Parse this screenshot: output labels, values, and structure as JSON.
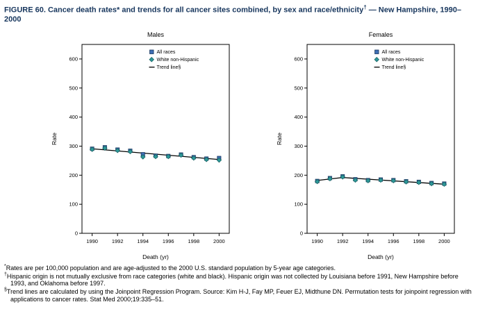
{
  "figure": {
    "title_pre": "FIGURE 60. Cancer death rates* and trends for all cancer sites combined, by sex and race/ethnicity",
    "title_sup": "†",
    "title_post": " — New Hampshire, 1990–2000"
  },
  "footnotes": [
    {
      "marker": "*",
      "text": "Rates are per 100,000 population and are age-adjusted to the 2000 U.S. standard population by 5-year age categories."
    },
    {
      "marker": "†",
      "text": "Hispanic origin is not mutually exclusive from race categories (white and black). Hispanic origin was not collected by Louisiana before 1991, New Hampshire before 1993, and Oklahoma before 1997."
    },
    {
      "marker": "§",
      "text": "Trend lines are calculated by using the Joinpoint Regression Program. Source: Kim H-J, Fay MP, Feuer EJ, Midthune DN. Permutation tests for joinpoint regression with applications to cancer rates. Stat Med 2000;19:335–51."
    }
  ],
  "colors": {
    "title_navy": "#17365d",
    "all_races_fill": "#3f6fb5",
    "all_races_stroke": "#17365d",
    "white_nh_fill": "#2e9999",
    "white_nh_stroke": "#1a6666",
    "trend": "#000000"
  },
  "chart_data": [
    {
      "type": "line",
      "title": "Males",
      "xlabel": "Death (yr)",
      "ylabel": "Rate",
      "ylim": [
        0,
        650
      ],
      "yticks": [
        0,
        100,
        200,
        300,
        400,
        500,
        600
      ],
      "x": [
        1990,
        1991,
        1992,
        1993,
        1994,
        1995,
        1996,
        1997,
        1998,
        1999,
        2000
      ],
      "xticks": [
        1990,
        1992,
        1994,
        1996,
        1998,
        2000
      ],
      "series": [
        {
          "name": "All races",
          "marker": "square",
          "fill": "#3f6fb5",
          "stroke": "#17365d",
          "values": [
            291,
            296,
            288,
            284,
            272,
            267,
            266,
            271,
            262,
            257,
            259
          ]
        },
        {
          "name": "White non-Hispanic",
          "marker": "diamond",
          "fill": "#2e9999",
          "stroke": "#1a6666",
          "values": [
            289,
            293,
            285,
            281,
            263,
            264,
            264,
            269,
            259,
            254,
            252
          ]
        }
      ],
      "trend": [
        [
          1990,
          291
        ],
        [
          2000,
          254
        ]
      ],
      "trend_color": "#000000",
      "legend_items": [
        {
          "marker": "square",
          "fill": "#3f6fb5",
          "stroke": "#17365d",
          "label": "All races"
        },
        {
          "marker": "diamond",
          "fill": "#2e9999",
          "stroke": "#1a6666",
          "label": "White non-Hispanic"
        },
        {
          "marker": "line",
          "fill": "#000000",
          "stroke": "#000000",
          "label": "Trend line§"
        }
      ],
      "legend_position": "top-center-right",
      "grid": false
    },
    {
      "type": "line",
      "title": "Females",
      "xlabel": "Death (yr)",
      "ylabel": "Rate",
      "ylim": [
        0,
        650
      ],
      "yticks": [
        0,
        100,
        200,
        300,
        400,
        500,
        600
      ],
      "x": [
        1990,
        1991,
        1992,
        1993,
        1994,
        1995,
        1996,
        1997,
        1998,
        1999,
        2000
      ],
      "xticks": [
        1990,
        1992,
        1994,
        1996,
        1998,
        2000
      ],
      "series": [
        {
          "name": "All races",
          "marker": "square",
          "fill": "#3f6fb5",
          "stroke": "#17365d",
          "values": [
            180,
            190,
            196,
            186,
            183,
            185,
            183,
            179,
            177,
            173,
            171
          ]
        },
        {
          "name": "White non-Hispanic",
          "marker": "diamond",
          "fill": "#2e9999",
          "stroke": "#1a6666",
          "values": [
            178,
            188,
            194,
            183,
            181,
            183,
            181,
            177,
            175,
            171,
            169
          ]
        }
      ],
      "trend": [
        [
          1990,
          182
        ],
        [
          1992,
          192
        ],
        [
          2000,
          169
        ]
      ],
      "trend_color": "#000000",
      "legend_items": [
        {
          "marker": "square",
          "fill": "#3f6fb5",
          "stroke": "#17365d",
          "label": "All races"
        },
        {
          "marker": "diamond",
          "fill": "#2e9999",
          "stroke": "#1a6666",
          "label": "White non-Hispanic"
        },
        {
          "marker": "line",
          "fill": "#000000",
          "stroke": "#000000",
          "label": "Trend line§"
        }
      ],
      "legend_position": "top-center-right",
      "grid": false
    }
  ]
}
